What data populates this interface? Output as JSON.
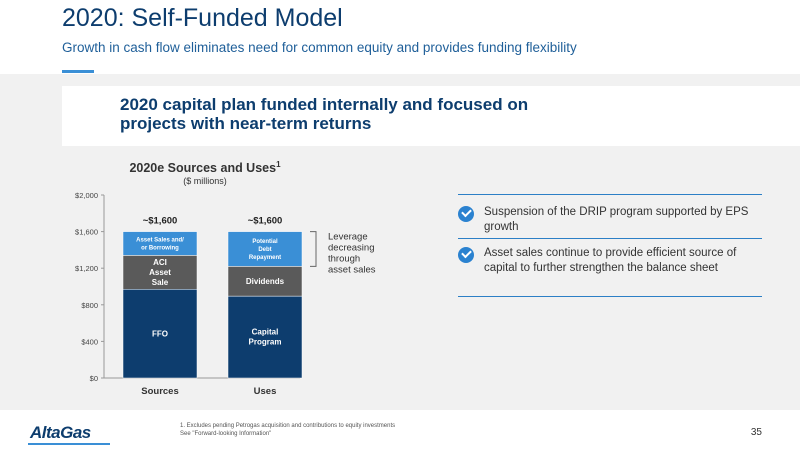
{
  "slide": {
    "title": "2020: Self-Funded Model",
    "subtitle": "Growth in cash flow eliminates need for common equity and provides funding flexibility",
    "callout": "2020 capital plan funded internally and focused on projects with near-term returns",
    "page_number": "35"
  },
  "chart_data": {
    "type": "bar",
    "stacked": true,
    "title": "2020e Sources and Uses",
    "title_superscript": "1",
    "subtitle": "($ millions)",
    "categories": [
      "Sources",
      "Uses"
    ],
    "totals_labels": [
      "~$1,600",
      "~$1,600"
    ],
    "ylim": [
      0,
      2000
    ],
    "yticks": [
      0,
      400,
      800,
      1200,
      1600,
      2000
    ],
    "ytick_labels": [
      "$0",
      "$400",
      "$800",
      "$1,200",
      "$1,600",
      "$2,000"
    ],
    "stacks": [
      {
        "category": "Sources",
        "segments": [
          {
            "label": "FFO",
            "value": 970,
            "color": "#0d3d6e"
          },
          {
            "label": "ACI Asset Sale",
            "value": 370,
            "color": "#5a5a5a"
          },
          {
            "label": "Asset Sales and/ or Borrowing",
            "value": 260,
            "color": "#3a8fd6"
          }
        ]
      },
      {
        "category": "Uses",
        "segments": [
          {
            "label": "Capital Program",
            "value": 895,
            "color": "#0d3d6e"
          },
          {
            "label": "Dividends",
            "value": 325,
            "color": "#5a5a5a"
          },
          {
            "label": "Potential Debt Repayment",
            "value": 380,
            "color": "#3a8fd6"
          }
        ]
      }
    ],
    "annotation": "Leverage decreasing through asset sales"
  },
  "bullets": [
    {
      "icon": "check-icon",
      "text": "Suspension of the DRIP program supported by EPS growth"
    },
    {
      "icon": "check-icon",
      "text": "Asset sales continue to provide efficient source of capital to further strengthen the balance sheet"
    }
  ],
  "footer": {
    "logo": "AltaGas",
    "footnote_1": "1. Excludes pending Petrogas acquisition and contributions to equity investments",
    "footnote_2": "See \"Forward-looking Information\""
  },
  "colors": {
    "navy": "#0d3d6e",
    "blue": "#3a8fd6",
    "gray": "#5a5a5a",
    "band": "#f1f1f1"
  }
}
